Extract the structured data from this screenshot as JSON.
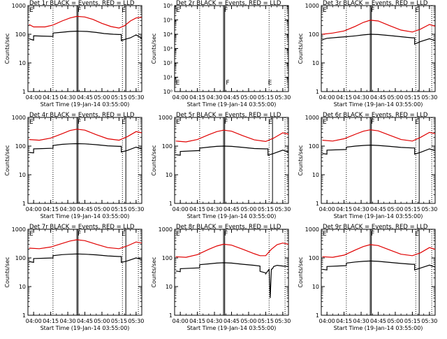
{
  "colors": {
    "events": "#000000",
    "lld": "#e00000",
    "axes": "#000000",
    "background": "#ffffff"
  },
  "common": {
    "ylabel": "Counts/sec",
    "xlabel": "Start Time (19-Jan-14 03:55:00)",
    "x_tick_labels": [
      "04:00",
      "04:15",
      "04:30",
      "04:45",
      "05:00",
      "05:15",
      "05:30"
    ],
    "time_start": "03:55:00",
    "y_scale": "log",
    "marker_letter": "E",
    "marker_letter_2": "F"
  },
  "chart_data": [
    {
      "type": "line",
      "title": "Det 1r BLACK = Events, RED = LLD",
      "x_range": [
        "03:55",
        "05:35"
      ],
      "ylim": [
        1,
        1000
      ],
      "y_tick_labels": [
        "1",
        "10",
        "100",
        "1000"
      ],
      "event_lines": [
        "04:38",
        "04:39",
        "05:21"
      ],
      "dotted_lines": [
        "04:17",
        "05:18",
        "05:32"
      ],
      "series": [
        {
          "name": "Events",
          "color": "#000000",
          "x": [
            "03:56",
            "04:00",
            "04:00",
            "04:17",
            "04:17",
            "04:25",
            "04:32",
            "04:38",
            "04:40",
            "04:47",
            "04:55",
            "05:02",
            "05:10",
            "05:15",
            "05:17",
            "05:17",
            "05:20",
            "05:25",
            "05:30",
            "05:35"
          ],
          "values": [
            70,
            62,
            88,
            84,
            110,
            118,
            125,
            128,
            127,
            125,
            116,
            106,
            100,
            98,
            98,
            60,
            66,
            75,
            95,
            72
          ]
        },
        {
          "name": "LLD",
          "color": "#e00000",
          "x": [
            "03:56",
            "04:00",
            "04:10",
            "04:17",
            "04:25",
            "04:32",
            "04:38",
            "04:45",
            "04:52",
            "05:00",
            "05:08",
            "05:15",
            "05:20",
            "05:25",
            "05:30",
            "05:35"
          ],
          "values": [
            220,
            180,
            180,
            210,
            290,
            370,
            420,
            400,
            330,
            240,
            185,
            165,
            200,
            290,
            370,
            390
          ]
        }
      ]
    },
    {
      "type": "line",
      "title": "Det 2r BLACK = Events, RED = LLD",
      "x_range": [
        "03:55",
        "05:35"
      ],
      "ylim": [
        1,
        1000000
      ],
      "y_tick_labels": [
        "10⁰",
        "10¹",
        "10²",
        "10³",
        "10⁴",
        "10⁵",
        "10⁶"
      ],
      "event_lines": [
        "04:38",
        "04:39"
      ],
      "dotted_lines": [
        "04:17",
        "05:18",
        "05:32"
      ],
      "extra_markers": [
        {
          "label": "E",
          "x": "03:56"
        },
        {
          "label": "F",
          "x": "04:40"
        },
        {
          "label": "E",
          "x": "05:17"
        }
      ],
      "series": []
    },
    {
      "type": "line",
      "title": "Det 3r BLACK = Events, RED = LLD",
      "x_range": [
        "03:55",
        "05:35"
      ],
      "ylim": [
        1,
        1000
      ],
      "y_tick_labels": [
        "1",
        "10",
        "100",
        "1000"
      ],
      "event_lines": [
        "04:38",
        "04:39",
        "05:21"
      ],
      "dotted_lines": [
        "04:17",
        "05:18",
        "05:32"
      ],
      "series": [
        {
          "name": "Events",
          "color": "#000000",
          "x": [
            "03:56",
            "04:00",
            "04:10",
            "04:17",
            "04:25",
            "04:32",
            "04:38",
            "04:45",
            "04:55",
            "05:05",
            "05:10",
            "05:15",
            "05:17",
            "05:17",
            "05:22",
            "05:30",
            "05:35"
          ],
          "values": [
            65,
            72,
            78,
            82,
            88,
            95,
            100,
            98,
            90,
            82,
            78,
            75,
            75,
            45,
            55,
            70,
            60
          ]
        },
        {
          "name": "LLD",
          "color": "#e00000",
          "x": [
            "03:56",
            "04:05",
            "04:15",
            "04:25",
            "04:32",
            "04:38",
            "04:45",
            "04:55",
            "05:05",
            "05:15",
            "05:22",
            "05:30",
            "05:35"
          ],
          "values": [
            100,
            110,
            130,
            190,
            260,
            310,
            290,
            200,
            140,
            120,
            150,
            220,
            190
          ]
        }
      ]
    },
    {
      "type": "line",
      "title": "Det 4r BLACK = Events, RED = LLD",
      "x_range": [
        "03:55",
        "05:35"
      ],
      "ylim": [
        1,
        1000
      ],
      "y_tick_labels": [
        "1",
        "10",
        "100",
        "1000"
      ],
      "event_lines": [
        "04:38",
        "04:39",
        "05:21"
      ],
      "dotted_lines": [
        "04:17",
        "05:18",
        "05:32"
      ],
      "series": [
        {
          "name": "Events",
          "color": "#000000",
          "x": [
            "03:56",
            "04:00",
            "04:00",
            "04:17",
            "04:17",
            "04:25",
            "04:32",
            "04:38",
            "04:45",
            "04:55",
            "05:05",
            "05:15",
            "05:17",
            "05:17",
            "05:22",
            "05:30",
            "05:35"
          ],
          "values": [
            60,
            58,
            80,
            84,
            105,
            115,
            120,
            122,
            120,
            112,
            102,
            98,
            98,
            62,
            70,
            92,
            80
          ]
        },
        {
          "name": "LLD",
          "color": "#e00000",
          "x": [
            "03:56",
            "04:05",
            "04:15",
            "04:25",
            "04:32",
            "04:38",
            "04:45",
            "04:55",
            "05:05",
            "05:15",
            "05:22",
            "05:30",
            "05:35"
          ],
          "values": [
            170,
            160,
            190,
            270,
            350,
            390,
            360,
            250,
            180,
            160,
            210,
            320,
            290
          ]
        }
      ]
    },
    {
      "type": "line",
      "title": "Det 5r BLACK = Events, RED = LLD",
      "x_range": [
        "03:55",
        "05:35"
      ],
      "ylim": [
        1,
        1000
      ],
      "y_tick_labels": [
        "1",
        "10",
        "100",
        "1000"
      ],
      "event_lines": [
        "04:38",
        "04:39",
        "05:21"
      ],
      "dotted_lines": [
        "04:17",
        "05:18",
        "05:32"
      ],
      "series": [
        {
          "name": "Events",
          "color": "#000000",
          "x": [
            "03:56",
            "04:00",
            "04:00",
            "04:17",
            "04:17",
            "04:25",
            "04:32",
            "04:38",
            "04:45",
            "04:55",
            "05:05",
            "05:15",
            "05:17",
            "05:17",
            "05:22",
            "05:30",
            "05:35"
          ],
          "values": [
            50,
            48,
            65,
            70,
            85,
            92,
            98,
            100,
            98,
            90,
            82,
            80,
            80,
            48,
            55,
            72,
            62
          ]
        },
        {
          "name": "LLD",
          "color": "#e00000",
          "x": [
            "03:56",
            "04:05",
            "04:15",
            "04:25",
            "04:32",
            "04:38",
            "04:45",
            "04:55",
            "05:05",
            "05:15",
            "05:22",
            "05:30",
            "05:35"
          ],
          "values": [
            150,
            140,
            170,
            250,
            320,
            360,
            330,
            230,
            165,
            145,
            190,
            290,
            260
          ]
        }
      ]
    },
    {
      "type": "line",
      "title": "Det 6r BLACK = Events, RED = LLD",
      "x_range": [
        "03:55",
        "05:35"
      ],
      "ylim": [
        1,
        1000
      ],
      "y_tick_labels": [
        "1",
        "10",
        "100",
        "1000"
      ],
      "event_lines": [
        "04:38",
        "04:39",
        "05:21"
      ],
      "dotted_lines": [
        "04:17",
        "05:18",
        "05:32"
      ],
      "series": [
        {
          "name": "Events",
          "color": "#000000",
          "x": [
            "03:56",
            "04:00",
            "04:00",
            "04:17",
            "04:17",
            "04:25",
            "04:32",
            "04:38",
            "04:45",
            "04:55",
            "05:05",
            "05:15",
            "05:17",
            "05:17",
            "05:22",
            "05:30",
            "05:35"
          ],
          "values": [
            55,
            52,
            72,
            76,
            92,
            100,
            105,
            108,
            105,
            98,
            90,
            86,
            86,
            52,
            60,
            80,
            70
          ]
        },
        {
          "name": "LLD",
          "color": "#e00000",
          "x": [
            "03:56",
            "04:05",
            "04:15",
            "04:25",
            "04:32",
            "04:38",
            "04:45",
            "04:55",
            "05:05",
            "05:15",
            "05:22",
            "05:30",
            "05:35"
          ],
          "values": [
            160,
            150,
            180,
            260,
            330,
            370,
            340,
            240,
            170,
            150,
            200,
            300,
            270
          ]
        }
      ]
    },
    {
      "type": "line",
      "title": "Det 7r BLACK = Events, RED = LLD",
      "x_range": [
        "03:55",
        "05:35"
      ],
      "ylim": [
        1,
        1000
      ],
      "y_tick_labels": [
        "1",
        "10",
        "100",
        "1000"
      ],
      "event_lines": [
        "04:38",
        "04:39",
        "05:21"
      ],
      "dotted_lines": [
        "04:17",
        "05:18",
        "05:32"
      ],
      "series": [
        {
          "name": "Events",
          "color": "#000000",
          "x": [
            "03:56",
            "04:00",
            "04:00",
            "04:17",
            "04:17",
            "04:25",
            "04:32",
            "04:38",
            "04:45",
            "04:55",
            "05:05",
            "05:15",
            "05:17",
            "05:17",
            "05:22",
            "05:30",
            "05:35"
          ],
          "values": [
            75,
            70,
            95,
            100,
            120,
            130,
            135,
            138,
            135,
            128,
            118,
            112,
            112,
            70,
            78,
            100,
            88
          ]
        },
        {
          "name": "LLD",
          "color": "#e00000",
          "x": [
            "03:56",
            "04:05",
            "04:15",
            "04:25",
            "04:32",
            "04:38",
            "04:45",
            "04:55",
            "05:05",
            "05:15",
            "05:22",
            "05:30",
            "05:35"
          ],
          "values": [
            220,
            210,
            240,
            320,
            390,
            430,
            400,
            300,
            230,
            210,
            260,
            360,
            330
          ]
        }
      ]
    },
    {
      "type": "line",
      "title": "Det 8r BLACK = Events, RED = LLD",
      "x_range": [
        "03:55",
        "05:35"
      ],
      "ylim": [
        1,
        1000
      ],
      "y_tick_labels": [
        "1",
        "10",
        "100",
        "1000"
      ],
      "event_lines": [
        "04:38",
        "04:39"
      ],
      "dotted_lines": [
        "04:17",
        "05:18",
        "05:32"
      ],
      "series": [
        {
          "name": "Events",
          "color": "#000000",
          "x": [
            "03:56",
            "04:00",
            "04:00",
            "04:17",
            "04:17",
            "04:25",
            "04:32",
            "04:38",
            "04:45",
            "04:55",
            "05:05",
            "05:10",
            "05:10",
            "05:15",
            "05:15",
            "05:18",
            "05:19",
            "05:20",
            "05:21",
            "05:22",
            "05:25",
            "05:30",
            "05:35"
          ],
          "values": [
            35,
            33,
            42,
            45,
            58,
            62,
            66,
            68,
            66,
            60,
            55,
            52,
            34,
            30,
            28,
            40,
            4,
            40,
            42,
            50,
            55,
            52,
            50
          ]
        },
        {
          "name": "LLD",
          "color": "#e00000",
          "x": [
            "03:56",
            "04:05",
            "04:15",
            "04:25",
            "04:32",
            "04:38",
            "04:45",
            "04:55",
            "05:05",
            "05:10",
            "05:15",
            "05:20",
            "05:25",
            "05:30",
            "05:35"
          ],
          "values": [
            110,
            105,
            130,
            200,
            260,
            300,
            280,
            200,
            140,
            120,
            120,
            200,
            290,
            330,
            300
          ]
        }
      ]
    },
    {
      "type": "line",
      "title": "Det 9r BLACK = Events, RED = LLD",
      "x_range": [
        "03:55",
        "05:35"
      ],
      "ylim": [
        1,
        1000
      ],
      "y_tick_labels": [
        "1",
        "10",
        "100",
        "1000"
      ],
      "event_lines": [
        "04:38",
        "04:39",
        "05:21"
      ],
      "dotted_lines": [
        "04:17",
        "05:18",
        "05:32"
      ],
      "series": [
        {
          "name": "Events",
          "color": "#000000",
          "x": [
            "03:56",
            "04:00",
            "04:00",
            "04:17",
            "04:17",
            "04:25",
            "04:32",
            "04:38",
            "04:45",
            "04:55",
            "05:05",
            "05:15",
            "05:17",
            "05:17",
            "05:22",
            "05:30",
            "05:35"
          ],
          "values": [
            40,
            38,
            50,
            54,
            66,
            72,
            76,
            78,
            76,
            70,
            64,
            60,
            60,
            38,
            44,
            56,
            48
          ]
        },
        {
          "name": "LLD",
          "color": "#e00000",
          "x": [
            "03:56",
            "04:05",
            "04:15",
            "04:25",
            "04:32",
            "04:38",
            "04:45",
            "04:55",
            "05:05",
            "05:15",
            "05:22",
            "05:30",
            "05:35"
          ],
          "values": [
            110,
            105,
            125,
            190,
            250,
            290,
            270,
            190,
            135,
            120,
            150,
            230,
            200
          ]
        }
      ]
    }
  ]
}
